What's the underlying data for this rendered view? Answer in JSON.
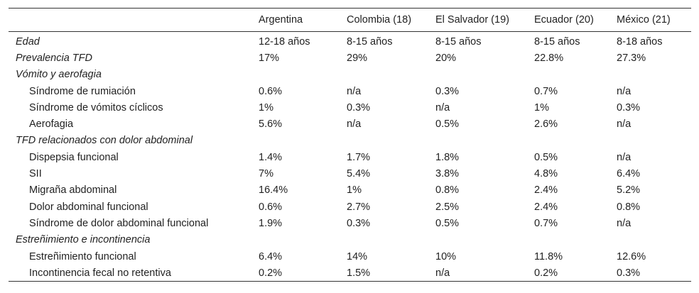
{
  "table": {
    "headers": [
      "",
      "Argentina",
      "Colombia (18)",
      "El Salvador (19)",
      "Ecuador (20)",
      "México (21)"
    ],
    "rows": [
      {
        "label": "Edad",
        "values": [
          "12-18 años",
          "8-15 años",
          "8-15 años",
          "8-15 años",
          "8-18 años"
        ]
      },
      {
        "label": "Prevalencia TFD",
        "values": [
          "17%",
          "29%",
          "20%",
          "22.8%",
          "27.3%"
        ]
      },
      {
        "label": "Vómito y aerofagia",
        "values": [
          "",
          "",
          "",
          "",
          ""
        ]
      },
      {
        "label": "Síndrome de rumiación",
        "values": [
          "0.6%",
          "n/a",
          "0.3%",
          "0.7%",
          "n/a"
        ]
      },
      {
        "label": "Síndrome de vómitos cíclicos",
        "values": [
          "1%",
          "0.3%",
          "n/a",
          "1%",
          "0.3%"
        ]
      },
      {
        "label": "Aerofagia",
        "values": [
          "5.6%",
          "n/a",
          "0.5%",
          "2.6%",
          "n/a"
        ]
      },
      {
        "label": "TFD relacionados con dolor abdominal",
        "values": [
          "",
          "",
          "",
          "",
          ""
        ]
      },
      {
        "label": "Dispepsia funcional",
        "values": [
          "1.4%",
          "1.7%",
          "1.8%",
          "0.5%",
          "n/a"
        ]
      },
      {
        "label": "SII",
        "values": [
          "7%",
          "5.4%",
          "3.8%",
          "4.8%",
          "6.4%"
        ]
      },
      {
        "label": "Migraña abdominal",
        "values": [
          "16.4%",
          "1%",
          "0.8%",
          "2.4%",
          "5.2%"
        ]
      },
      {
        "label": "Dolor abdominal funcional",
        "values": [
          "0.6%",
          "2.7%",
          "2.5%",
          "2.4%",
          "0.8%"
        ]
      },
      {
        "label": "Síndrome de dolor abdominal funcional",
        "values": [
          "1.9%",
          "0.3%",
          "0.5%",
          "0.7%",
          "n/a"
        ]
      },
      {
        "label": "Estreñimiento e incontinencia",
        "values": [
          "",
          "",
          "",
          "",
          ""
        ]
      },
      {
        "label": "Estreñimiento funcional",
        "values": [
          "6.4%",
          "14%",
          "10%",
          "11.8%",
          "12.6%"
        ]
      },
      {
        "label": "Incontinencia fecal no retentiva",
        "values": [
          "0.2%",
          "1.5%",
          "n/a",
          "0.2%",
          "0.3%"
        ]
      }
    ]
  }
}
